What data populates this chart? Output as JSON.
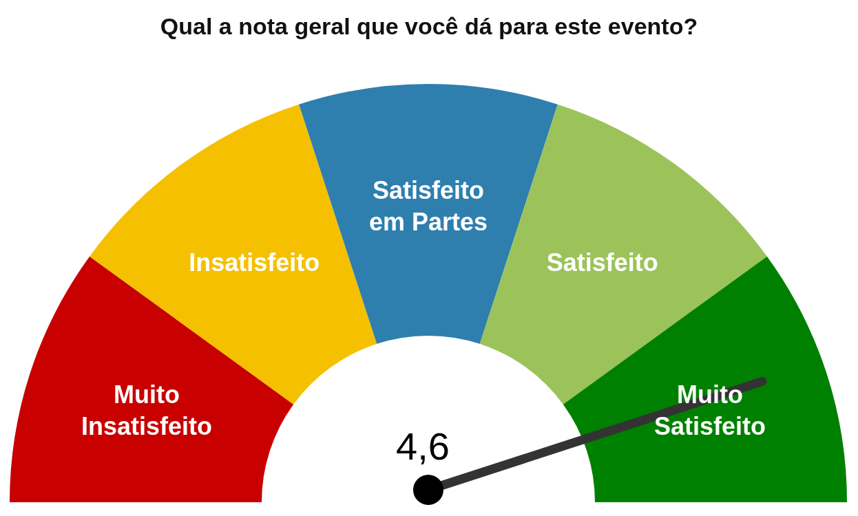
{
  "chart_data": {
    "type": "donut",
    "title": "Qual a nota geral que você dá para este evento?",
    "categories": [
      "Muito Insatisfeito",
      "Insatisfeito",
      "Satisfeito em Partes",
      "Satisfeito",
      "Muito Satisfeito"
    ],
    "values": [
      20,
      20,
      20,
      20,
      20
    ],
    "colors": [
      "#c80000",
      "#f5c000",
      "#2e7fae",
      "#9bc35a",
      "#008000"
    ],
    "needle": "Muito Satisfeito",
    "annotations": [
      "4,6"
    ]
  }
}
